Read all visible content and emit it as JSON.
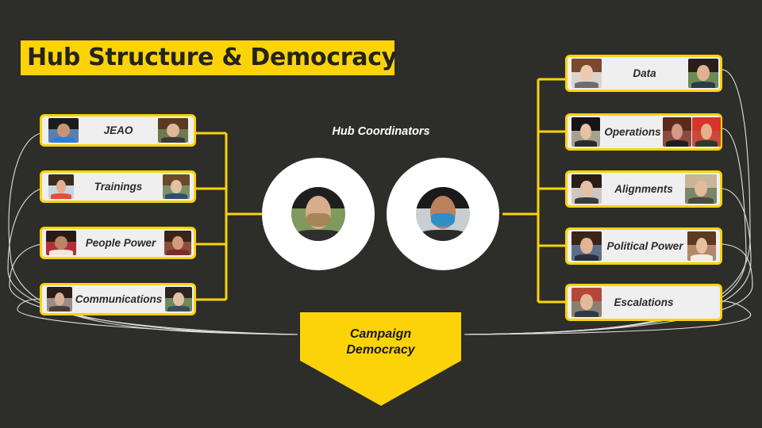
{
  "slide": {
    "title": "Hub Structure & Democracy",
    "hub_coordinators_label": "Hub Coordinators",
    "campaign_democracy_label_line1": "Campaign",
    "campaign_democracy_label_line2": "Democracy"
  },
  "left_teams": [
    {
      "label": "JEAO"
    },
    {
      "label": "Trainings"
    },
    {
      "label": "People Power"
    },
    {
      "label": "Communications"
    }
  ],
  "right_teams": [
    {
      "label": "Data"
    },
    {
      "label": "Operations"
    },
    {
      "label": "Alignments"
    },
    {
      "label": "Political Power"
    },
    {
      "label": "Escalations"
    }
  ],
  "colors": {
    "background": "#2d2d29",
    "accent_yellow": "#fcd309",
    "box_fill": "#efefef",
    "connector_outline": "#ffffff"
  }
}
